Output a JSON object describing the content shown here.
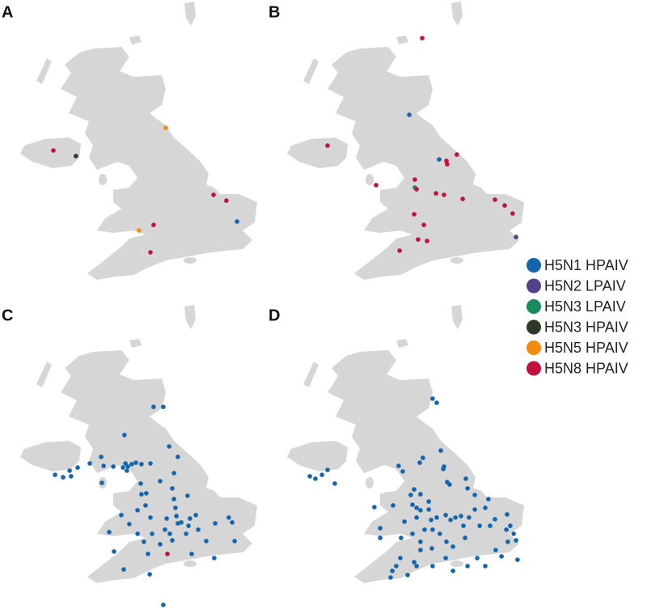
{
  "panels": [
    {
      "label": "A",
      "points": [
        [
          -6.1,
          54.8,
          5
        ],
        [
          -5.17,
          54.57,
          3
        ],
        [
          -1.47,
          55.73,
          4
        ],
        [
          0.5,
          52.97,
          5
        ],
        [
          1.03,
          52.73,
          5
        ],
        [
          1.47,
          51.87,
          0
        ],
        [
          -1.97,
          51.73,
          5
        ],
        [
          -2.57,
          51.5,
          4
        ],
        [
          -2.1,
          50.6,
          5
        ]
      ]
    },
    {
      "label": "B",
      "points": [
        [
          -1.9,
          59.43,
          5
        ],
        [
          -2.43,
          56.27,
          0
        ],
        [
          -5.8,
          55.0,
          5
        ],
        [
          -1.2,
          54.43,
          0
        ],
        [
          -0.47,
          54.63,
          5
        ],
        [
          -0.9,
          54.37,
          5
        ],
        [
          -0.87,
          54.23,
          5
        ],
        [
          -2.2,
          53.6,
          5
        ],
        [
          -3.8,
          53.37,
          5
        ],
        [
          -2.2,
          53.27,
          2
        ],
        [
          -2.13,
          53.2,
          5
        ],
        [
          -1.33,
          53.03,
          5
        ],
        [
          -1.0,
          52.97,
          5
        ],
        [
          -0.23,
          52.8,
          5
        ],
        [
          1.1,
          52.77,
          5
        ],
        [
          1.5,
          52.53,
          5
        ],
        [
          -2.23,
          52.17,
          5
        ],
        [
          1.83,
          52.2,
          5
        ],
        [
          -1.83,
          51.73,
          5
        ],
        [
          -2.07,
          51.13,
          5
        ],
        [
          1.97,
          51.23,
          1
        ],
        [
          -1.7,
          51.07,
          5
        ],
        [
          -2.83,
          50.67,
          5
        ]
      ]
    },
    {
      "label": "C",
      "points": [
        [
          -1.97,
          56.73,
          0
        ],
        [
          -1.57,
          56.73,
          0
        ],
        [
          -3.17,
          55.57,
          0
        ],
        [
          -4.13,
          54.67,
          0
        ],
        [
          -1.33,
          55.1,
          0
        ],
        [
          -0.97,
          54.67,
          0
        ],
        [
          -6.03,
          53.93,
          0
        ],
        [
          -5.7,
          53.83,
          0
        ],
        [
          -5.43,
          54.1,
          0
        ],
        [
          -5.37,
          53.87,
          0
        ],
        [
          -5.1,
          54.23,
          0
        ],
        [
          -4.6,
          54.4,
          0
        ],
        [
          -4.03,
          54.3,
          0
        ],
        [
          -3.63,
          54.27,
          0
        ],
        [
          -3.13,
          54.4,
          0
        ],
        [
          -3.03,
          54.27,
          0
        ],
        [
          -2.87,
          54.37,
          0
        ],
        [
          -2.7,
          54.43,
          0
        ],
        [
          -2.47,
          54.37,
          0
        ],
        [
          -3.07,
          54.1,
          0
        ],
        [
          -3.23,
          54.23,
          0
        ],
        [
          -2.1,
          54.4,
          0
        ],
        [
          -1.7,
          53.67,
          0
        ],
        [
          -1.13,
          54.0,
          0
        ],
        [
          -4.1,
          53.6,
          0
        ],
        [
          -2.5,
          53.57,
          0
        ],
        [
          -2.47,
          53.13,
          0
        ],
        [
          -2.3,
          52.67,
          0
        ],
        [
          -2.27,
          53.17,
          0
        ],
        [
          -2.63,
          52.47,
          0
        ],
        [
          -1.2,
          53.37,
          0
        ],
        [
          -1.13,
          52.93,
          0
        ],
        [
          -0.57,
          53.07,
          0
        ],
        [
          -1.07,
          52.57,
          0
        ],
        [
          -1.43,
          52.13,
          0
        ],
        [
          -2.1,
          52.17,
          0
        ],
        [
          -1.03,
          52.23,
          0
        ],
        [
          -0.97,
          51.93,
          0
        ],
        [
          -1.5,
          51.67,
          0
        ],
        [
          -1.3,
          51.5,
          0
        ],
        [
          -1.2,
          51.23,
          0
        ],
        [
          -0.83,
          51.97,
          0
        ],
        [
          -0.47,
          52.13,
          0
        ],
        [
          -0.23,
          52.27,
          0
        ],
        [
          -0.53,
          51.83,
          0
        ],
        [
          -0.13,
          51.67,
          0
        ],
        [
          0.57,
          51.93,
          0
        ],
        [
          0.2,
          51.2,
          0
        ],
        [
          -3.3,
          52.27,
          0
        ],
        [
          -2.97,
          51.9,
          0
        ],
        [
          -2.63,
          51.5,
          0
        ],
        [
          -2.37,
          51.17,
          0
        ],
        [
          -2.2,
          50.67,
          0
        ],
        [
          -1.7,
          51.07,
          0
        ],
        [
          -2.03,
          51.5,
          0
        ],
        [
          1.13,
          52.17,
          0
        ],
        [
          1.27,
          51.97,
          0
        ],
        [
          1.37,
          51.2,
          0
        ],
        [
          -0.4,
          50.67,
          0
        ],
        [
          0.53,
          50.5,
          0
        ],
        [
          -3.2,
          50.03,
          0
        ],
        [
          -2.13,
          49.83,
          0
        ],
        [
          -1.57,
          48.57,
          0
        ],
        [
          -3.6,
          50.77,
          0
        ],
        [
          -3.8,
          51.57,
          0
        ],
        [
          -0.63,
          51.5,
          0
        ],
        [
          -1.4,
          50.67,
          5
        ]
      ]
    },
    {
      "label": "D",
      "points": [
        [
          -1.47,
          57.07,
          0
        ],
        [
          -1.3,
          56.9,
          0
        ],
        [
          -2.87,
          54.3,
          0
        ],
        [
          -2.7,
          54.07,
          0
        ],
        [
          -2.0,
          54.43,
          0
        ],
        [
          -1.87,
          54.63,
          0
        ],
        [
          -1.13,
          54.93,
          0
        ],
        [
          -1.0,
          54.27,
          0
        ],
        [
          -0.87,
          53.63,
          0
        ],
        [
          -0.77,
          53.53,
          0
        ],
        [
          -1.03,
          54.17,
          0
        ],
        [
          -0.1,
          53.77,
          0
        ],
        [
          -0.03,
          53.37,
          0
        ],
        [
          0.27,
          53.1,
          0
        ],
        [
          -6.03,
          53.93,
          0
        ],
        [
          -5.8,
          54.13,
          0
        ],
        [
          -6.53,
          53.87,
          0
        ],
        [
          -6.3,
          53.77,
          0
        ],
        [
          -5.5,
          53.57,
          0
        ],
        [
          -3.87,
          52.6,
          0
        ],
        [
          -3.1,
          52.67,
          0
        ],
        [
          -2.37,
          53.1,
          0
        ],
        [
          -2.23,
          53.33,
          0
        ],
        [
          -1.97,
          53.13,
          0
        ],
        [
          -2.3,
          52.7,
          0
        ],
        [
          -2.13,
          52.57,
          0
        ],
        [
          -1.97,
          52.47,
          0
        ],
        [
          -1.63,
          52.83,
          0
        ],
        [
          -1.63,
          52.5,
          0
        ],
        [
          -1.53,
          52.07,
          0
        ],
        [
          -2.13,
          52.17,
          0
        ],
        [
          -1.8,
          51.67,
          0
        ],
        [
          -1.47,
          51.67,
          0
        ],
        [
          -2.3,
          51.5,
          0
        ],
        [
          -2.63,
          52.0,
          0
        ],
        [
          -2.77,
          51.33,
          0
        ],
        [
          -1.97,
          51.17,
          0
        ],
        [
          -1.3,
          52.17,
          0
        ],
        [
          -0.93,
          52.27,
          0
        ],
        [
          -0.73,
          52.07,
          0
        ],
        [
          -0.53,
          52.17,
          0
        ],
        [
          -0.3,
          52.23,
          0
        ],
        [
          -0.2,
          51.83,
          0
        ],
        [
          0.03,
          52.17,
          0
        ],
        [
          0.27,
          52.5,
          0
        ],
        [
          0.47,
          51.83,
          0
        ],
        [
          0.7,
          52.57,
          0
        ],
        [
          0.83,
          52.93,
          0
        ],
        [
          0.9,
          51.83,
          0
        ],
        [
          1.1,
          52.1,
          0
        ],
        [
          1.6,
          52.3,
          0
        ],
        [
          1.73,
          51.83,
          0
        ],
        [
          1.87,
          51.5,
          0
        ],
        [
          1.57,
          51.67,
          0
        ],
        [
          1.63,
          51.17,
          0
        ],
        [
          1.97,
          51.23,
          0
        ],
        [
          1.13,
          50.83,
          0
        ],
        [
          1.37,
          50.57,
          0
        ],
        [
          -1.17,
          51.5,
          0
        ],
        [
          -0.9,
          51.17,
          0
        ],
        [
          -0.63,
          50.97,
          0
        ],
        [
          -0.13,
          51.33,
          0
        ],
        [
          -0.93,
          50.5,
          0
        ],
        [
          -1.47,
          50.17,
          0
        ],
        [
          -2.13,
          50.17,
          0
        ],
        [
          -2.5,
          49.8,
          0
        ],
        [
          -3.63,
          51.33,
          0
        ],
        [
          -2.97,
          50.17,
          0
        ],
        [
          -2.23,
          50.33,
          0
        ],
        [
          -3.2,
          49.7,
          0
        ],
        [
          -0.63,
          49.97,
          0
        ],
        [
          -0.03,
          50.17,
          0
        ],
        [
          0.37,
          50.5,
          0
        ],
        [
          2.03,
          50.43,
          0
        ],
        [
          0.7,
          50.17,
          0
        ],
        [
          -3.13,
          49.97,
          0
        ],
        [
          -3.63,
          51.73,
          0
        ],
        [
          -1.97,
          50.83,
          0
        ],
        [
          -1.5,
          50.9,
          0
        ],
        [
          -2.8,
          50.5,
          0
        ]
      ]
    }
  ],
  "legend": [
    {
      "label": "H5N1 HPAIV",
      "color": "#1565ad"
    },
    {
      "label": "H5N2 LPAIV",
      "color": "#54418b"
    },
    {
      "label": "H5N3 LPAIV",
      "color": "#1b8a5a"
    },
    {
      "label": "H5N3 HPAIV",
      "color": "#2b3a26"
    },
    {
      "label": "H5N5 HPAIV",
      "color": "#f38b0f"
    },
    {
      "label": "H5N8 HPAIV",
      "color": "#c0123c"
    }
  ]
}
